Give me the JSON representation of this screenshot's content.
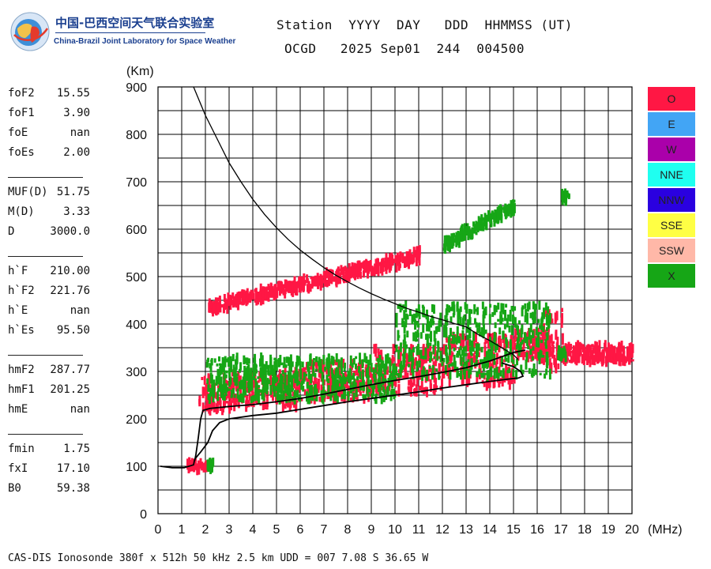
{
  "logo": {
    "cn": "中国-巴西空间天气联合实验室",
    "en": "China-Brazil Joint Laboratory for Space Weather"
  },
  "header": {
    "labels": "Station  YYYY  DAY   DDD  HHMMSS (UT)",
    "values": "OCGD   2025 Sep01  244  004500"
  },
  "params": [
    {
      "name": "foF2",
      "value": "15.55"
    },
    {
      "name": "foF1",
      "value": "3.90"
    },
    {
      "name": "foE",
      "value": "nan"
    },
    {
      "name": "foEs",
      "value": "2.00"
    },
    {
      "sep": true
    },
    {
      "name": "MUF(D)",
      "value": "51.75"
    },
    {
      "name": "M(D)",
      "value": "3.33"
    },
    {
      "name": "D",
      "value": "3000.0"
    },
    {
      "sep": true
    },
    {
      "name": "h`F",
      "value": "210.00"
    },
    {
      "name": "h`F2",
      "value": "221.76"
    },
    {
      "name": "h`E",
      "value": "nan"
    },
    {
      "name": "h`Es",
      "value": "95.50"
    },
    {
      "sep": true
    },
    {
      "name": "hmF2",
      "value": "287.77"
    },
    {
      "name": "hmF1",
      "value": "201.25"
    },
    {
      "name": "hmE",
      "value": "nan"
    },
    {
      "sep": true
    },
    {
      "name": "fmin",
      "value": "1.75"
    },
    {
      "name": "fxI",
      "value": "17.10"
    },
    {
      "name": "B0",
      "value": "59.38"
    }
  ],
  "legend": [
    {
      "label": "O",
      "color": "#ff1744"
    },
    {
      "label": "E",
      "color": "#42a5f5"
    },
    {
      "label": "W",
      "color": "#aa00aa"
    },
    {
      "label": "NNE",
      "color": "#1ffff0"
    },
    {
      "label": "NNW",
      "color": "#2a00e0"
    },
    {
      "label": "SSE",
      "color": "#ffff44"
    },
    {
      "label": "SSW",
      "color": "#ffb8a8"
    },
    {
      "label": "X",
      "color": "#16a616"
    }
  ],
  "footer": "CAS-DIS Ionosonde 380f x 512h 50 kHz 2.5 km UDD = 007 7.08 S 36.65 W",
  "chart_data": {
    "type": "scatter",
    "xlabel": "(MHz)",
    "ylabel": "(Km)",
    "xlim": [
      0,
      20
    ],
    "ylim": [
      0,
      900
    ],
    "xticks": [
      0,
      1,
      2,
      3,
      4,
      5,
      6,
      7,
      8,
      9,
      10,
      11,
      12,
      13,
      14,
      15,
      16,
      17,
      18,
      19,
      20
    ],
    "yticks": [
      0,
      100,
      200,
      300,
      400,
      500,
      600,
      700,
      800,
      900
    ],
    "grid": true,
    "legend_placement": "right",
    "series": [
      {
        "label": "O",
        "color": "#ff1744",
        "clusters": [
          {
            "x": [
              1.7,
              3.0
            ],
            "y": [
              215,
              290
            ]
          },
          {
            "x": [
              3.0,
              6.0
            ],
            "y": [
              225,
              300
            ]
          },
          {
            "x": [
              6.0,
              9.0
            ],
            "y": [
              240,
              320
            ]
          },
          {
            "x": [
              9.0,
              12.0
            ],
            "y": [
              255,
              350
            ]
          },
          {
            "x": [
              12.0,
              15.0
            ],
            "y": [
              270,
              375
            ]
          },
          {
            "x": [
              15.0,
              16.5
            ],
            "y": [
              325,
              385
            ]
          },
          {
            "x": [
              16.2,
              17.1
            ],
            "y": [
              300,
              430
            ]
          },
          {
            "x": [
              17.0,
              20.0
            ],
            "y": [
              320,
              355
            ]
          },
          {
            "x": [
              2.1,
              11.0
            ],
            "y": [
              435,
              545
            ],
            "trend": true
          },
          {
            "x": [
              1.2,
              2.0
            ],
            "y": [
              93,
              108
            ]
          }
        ]
      },
      {
        "label": "X",
        "color": "#16a616",
        "clusters": [
          {
            "x": [
              2.0,
              10.0
            ],
            "y": [
              240,
              330
            ]
          },
          {
            "x": [
              10.0,
              16.5
            ],
            "y": [
              290,
              440
            ]
          },
          {
            "x": [
              16.8,
              17.2
            ],
            "y": [
              325,
              345
            ]
          },
          {
            "x": [
              12.0,
              15.0
            ],
            "y": [
              565,
              650
            ],
            "trend": true
          },
          {
            "x": [
              17.0,
              17.3
            ],
            "y": [
              660,
              675
            ]
          },
          {
            "x": [
              2.0,
              2.3
            ],
            "y": [
              95,
              110
            ]
          }
        ]
      }
    ],
    "lines": [
      {
        "name": "profile",
        "points": [
          [
            0.1,
            100
          ],
          [
            0.6,
            97
          ],
          [
            1.1,
            97
          ],
          [
            1.5,
            103
          ],
          [
            1.55,
            115
          ],
          [
            1.8,
            130
          ],
          [
            2.1,
            150
          ],
          [
            2.3,
            175
          ],
          [
            2.6,
            192
          ],
          [
            3.0,
            200
          ],
          [
            4.0,
            207
          ],
          [
            5.0,
            212
          ],
          [
            6.0,
            220
          ],
          [
            7.0,
            228
          ],
          [
            8.0,
            236
          ],
          [
            9.0,
            243
          ],
          [
            10.0,
            250
          ],
          [
            11.0,
            257
          ],
          [
            12.0,
            265
          ],
          [
            13.0,
            272
          ],
          [
            14.0,
            279
          ],
          [
            14.8,
            284
          ],
          [
            15.2,
            286
          ],
          [
            15.4,
            290
          ],
          [
            15.3,
            300
          ],
          [
            15.0,
            310
          ],
          [
            14.5,
            318
          ]
        ]
      },
      {
        "name": "trace",
        "points": [
          [
            1.55,
            112
          ],
          [
            1.6,
            125
          ],
          [
            1.7,
            160
          ],
          [
            1.8,
            200
          ],
          [
            1.9,
            218
          ],
          [
            2.2,
            222
          ],
          [
            3,
            226
          ],
          [
            4,
            230
          ],
          [
            5,
            236
          ],
          [
            6,
            243
          ],
          [
            7,
            252
          ],
          [
            8,
            262
          ],
          [
            9,
            272
          ],
          [
            10,
            281
          ],
          [
            11,
            289
          ],
          [
            12,
            298
          ],
          [
            13,
            308
          ],
          [
            14,
            322
          ],
          [
            15,
            340
          ],
          [
            15.5,
            345
          ]
        ]
      },
      {
        "name": "curve",
        "points": [
          [
            1.5,
            900
          ],
          [
            2,
            840
          ],
          [
            2.5,
            790
          ],
          [
            3,
            740
          ],
          [
            3.5,
            700
          ],
          [
            4,
            663
          ],
          [
            4.5,
            631
          ],
          [
            5,
            603
          ],
          [
            5.5,
            578
          ],
          [
            6,
            556
          ],
          [
            6.5,
            537
          ],
          [
            7,
            519
          ],
          [
            7.5,
            503
          ],
          [
            8,
            489
          ],
          [
            8.5,
            476
          ],
          [
            9,
            464
          ],
          [
            9.5,
            453
          ],
          [
            10,
            443
          ],
          [
            10.5,
            433
          ],
          [
            11,
            425
          ],
          [
            11.5,
            416
          ],
          [
            12,
            409
          ],
          [
            12.5,
            401
          ],
          [
            13,
            394
          ],
          [
            13.5,
            378
          ],
          [
            14,
            365
          ],
          [
            14.5,
            350
          ],
          [
            15,
            335
          ],
          [
            15.2,
            325
          ]
        ]
      }
    ]
  }
}
